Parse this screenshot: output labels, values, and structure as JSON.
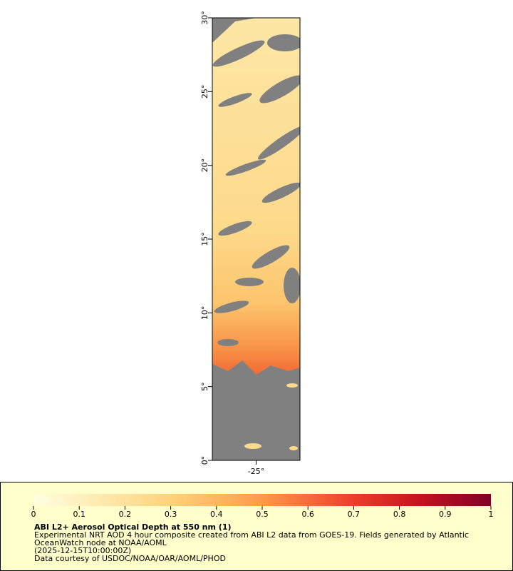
{
  "map": {
    "ylim": [
      0,
      30
    ],
    "xlim": [
      -28,
      -22
    ],
    "yticks": [
      {
        "value": 0,
        "label": "0°"
      },
      {
        "value": 5,
        "label": "5°"
      },
      {
        "value": 10,
        "label": "10°"
      },
      {
        "value": 15,
        "label": "15°"
      },
      {
        "value": 20,
        "label": "20°"
      },
      {
        "value": 25,
        "label": "25°"
      },
      {
        "value": 30,
        "label": "30°"
      }
    ],
    "xticks": [
      {
        "value": -25,
        "label": "-25°"
      }
    ]
  },
  "colorbar": {
    "lim": [
      0,
      1
    ],
    "ticks": [
      0,
      0.1,
      0.2,
      0.3,
      0.4,
      0.5,
      0.6,
      0.7,
      0.8,
      0.9,
      1
    ]
  },
  "legend": {
    "title": "ABI L2+ Aerosol Optical Depth at 550 nm (1)",
    "lines": [
      "Experimental NRT AOD 4 hour composite created from ABI L2 data from GOES-19. Fields generated by Atlantic",
      "OceanWatch node at NOAA/AOML",
      "(2025-12-15T10:00:00Z)",
      "Data courtesy of USDOC/NOAA/OAR/AOML/PHOD"
    ]
  }
}
